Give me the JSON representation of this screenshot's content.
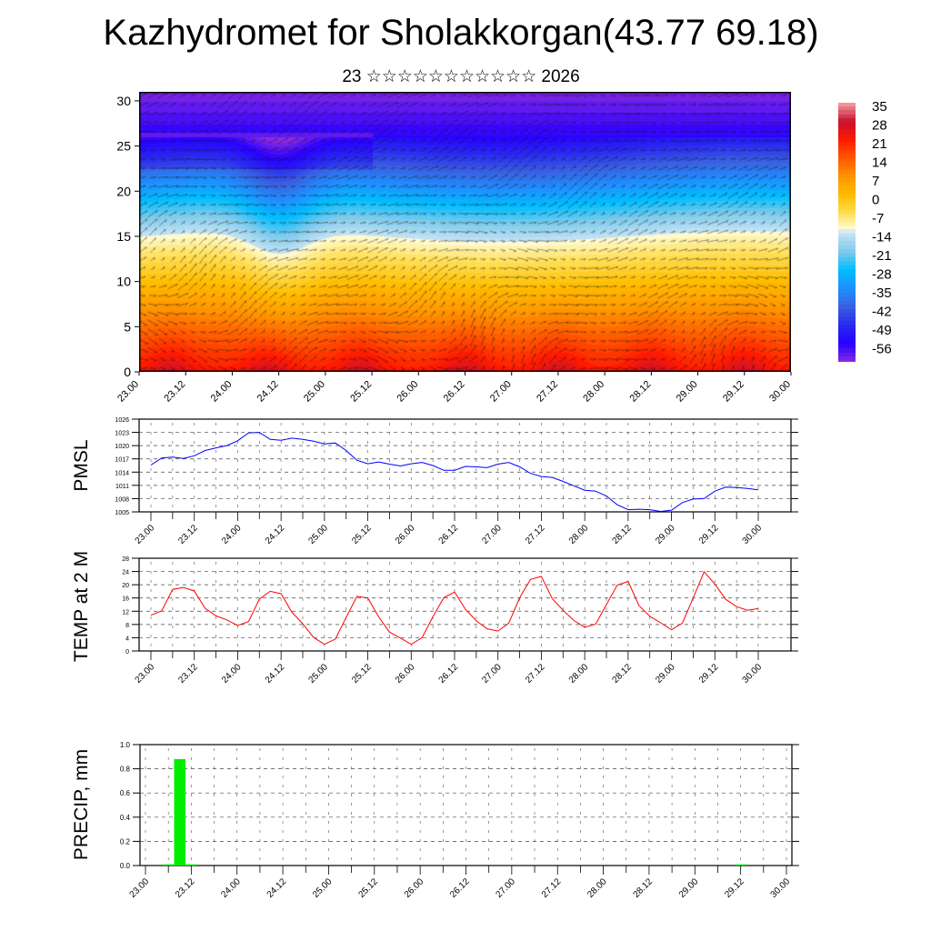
{
  "title": "Kazhydromet for Sholakkorgan(43.77 69.18)",
  "subtitle": "23 ☆☆☆☆☆☆☆☆☆☆☆ 2026",
  "chart_data": [
    {
      "type": "heatmap",
      "name": "vertical-section",
      "x_tick_labels": [
        "23.00",
        "23.12",
        "24.00",
        "24.12",
        "25.00",
        "25.12",
        "26.00",
        "26.12",
        "27.00",
        "27.12",
        "28.00",
        "28.12",
        "29.00",
        "29.12",
        "30.00"
      ],
      "y_ticks": [
        0,
        5,
        10,
        15,
        20,
        25,
        30
      ],
      "ylim": [
        0,
        31
      ],
      "colorbar_labels": [
        "35",
        "28",
        "21",
        "14",
        "7",
        "0",
        "-7",
        "-14",
        "-21",
        "-28",
        "-35",
        "-42",
        "-49",
        "-56"
      ],
      "overlay": "wind vectors"
    },
    {
      "type": "line",
      "name": "pmsl",
      "ylabel": "PMSL",
      "start": "23.00",
      "x_step_hours": 3,
      "x_tick_labels": [
        "23.00",
        "23.12",
        "24.00",
        "24.12",
        "25.00",
        "25.12",
        "26.00",
        "26.12",
        "27.00",
        "27.12",
        "28.00",
        "28.12",
        "29.00",
        "29.12",
        "30.00"
      ],
      "y_ticks": [
        "1005",
        "1008",
        "1011",
        "1014",
        "1017",
        "1020",
        "1023",
        "1026"
      ],
      "ylim": [
        1005,
        1026
      ],
      "color": "#0000ff",
      "values": [
        1015.6,
        1017.2,
        1017.4,
        1017.1,
        1017.7,
        1018.9,
        1019.5,
        1020.0,
        1021.1,
        1022.9,
        1023.0,
        1021.4,
        1021.2,
        1021.7,
        1021.4,
        1021.0,
        1020.4,
        1020.6,
        1018.9,
        1016.7,
        1015.9,
        1016.3,
        1015.8,
        1015.4,
        1015.9,
        1016.2,
        1015.5,
        1014.4,
        1014.4,
        1015.3,
        1015.2,
        1015.0,
        1015.8,
        1016.2,
        1015.2,
        1013.7,
        1013.0,
        1012.8,
        1011.9,
        1010.9,
        1009.9,
        1009.7,
        1008.6,
        1006.6,
        1005.5,
        1005.6,
        1005.5,
        1005.1,
        1005.4,
        1007.1,
        1007.9,
        1008.0,
        1009.7,
        1010.6,
        1010.5,
        1010.3,
        1010.0
      ]
    },
    {
      "type": "line",
      "name": "temp",
      "ylabel": "TEMP at 2 M",
      "start": "23.00",
      "x_step_hours": 3,
      "x_tick_labels": [
        "23.00",
        "23.12",
        "24.00",
        "24.12",
        "25.00",
        "25.12",
        "26.00",
        "26.12",
        "27.00",
        "27.12",
        "28.00",
        "28.12",
        "29.00",
        "29.12",
        "30.00"
      ],
      "y_ticks": [
        "0",
        "4",
        "8",
        "12",
        "16",
        "20",
        "24",
        "28"
      ],
      "ylim": [
        0,
        28
      ],
      "color": "#ff0000",
      "values": [
        10.8,
        12.1,
        18.6,
        19.2,
        18.1,
        12.9,
        10.6,
        9.4,
        7.7,
        8.9,
        15.7,
        18.0,
        17.3,
        11.7,
        8.2,
        4.1,
        2.0,
        3.6,
        10.1,
        16.5,
        16.0,
        10.3,
        5.7,
        3.9,
        2.0,
        4.0,
        10.3,
        16.1,
        17.8,
        12.6,
        9.1,
        6.7,
        6.0,
        8.4,
        16.1,
        21.6,
        22.5,
        15.8,
        12.3,
        9.2,
        7.2,
        8.1,
        14.0,
        19.9,
        21.0,
        13.7,
        10.5,
        8.5,
        6.4,
        8.4,
        16.0,
        23.9,
        20.2,
        15.6,
        13.4,
        12.3,
        12.8
      ]
    },
    {
      "type": "bar",
      "name": "precip",
      "ylabel": "PRECIP, mm",
      "x_tick_labels": [
        "23.00",
        "23.12",
        "24.00",
        "24.12",
        "25.00",
        "25.12",
        "26.00",
        "26.12",
        "27.00",
        "27.12",
        "28.00",
        "28.12",
        "29.00",
        "29.12",
        "30.00"
      ],
      "y_ticks": [
        "0.0",
        "0.2",
        "0.4",
        "0.6",
        "0.8",
        "1.0"
      ],
      "ylim": [
        0,
        1
      ],
      "color": "#00ee00",
      "bars": [
        {
          "time": "23.06",
          "hour": 6,
          "value": 0.01
        },
        {
          "time": "23.09",
          "hour": 9,
          "value": 0.88
        },
        {
          "time": "23.12",
          "hour": 12,
          "value": 0.01
        },
        {
          "time": "29.12",
          "hour": 156,
          "value": 0.01
        }
      ]
    }
  ]
}
